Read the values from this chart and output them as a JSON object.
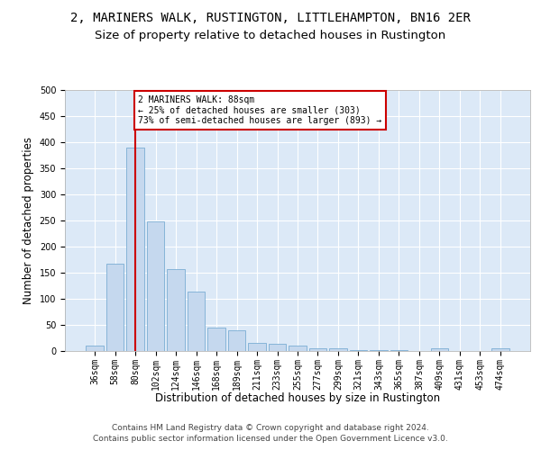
{
  "title": "2, MARINERS WALK, RUSTINGTON, LITTLEHAMPTON, BN16 2ER",
  "subtitle": "Size of property relative to detached houses in Rustington",
  "xlabel": "Distribution of detached houses by size in Rustington",
  "ylabel": "Number of detached properties",
  "categories": [
    "36sqm",
    "58sqm",
    "80sqm",
    "102sqm",
    "124sqm",
    "146sqm",
    "168sqm",
    "189sqm",
    "211sqm",
    "233sqm",
    "255sqm",
    "277sqm",
    "299sqm",
    "321sqm",
    "343sqm",
    "365sqm",
    "387sqm",
    "409sqm",
    "431sqm",
    "453sqm",
    "474sqm"
  ],
  "values": [
    11,
    167,
    390,
    248,
    157,
    113,
    44,
    40,
    16,
    13,
    10,
    6,
    5,
    2,
    2,
    1,
    0,
    5,
    0,
    0,
    5
  ],
  "bar_color": "#c5d8ee",
  "bar_edge_color": "#7aadd4",
  "property_line_x": 2,
  "property_line_color": "#cc0000",
  "annotation_text": "2 MARINERS WALK: 88sqm\n← 25% of detached houses are smaller (303)\n73% of semi-detached houses are larger (893) →",
  "annotation_box_color": "#cc0000",
  "plot_bg_color": "#dce9f7",
  "ylim": [
    0,
    500
  ],
  "yticks": [
    0,
    50,
    100,
    150,
    200,
    250,
    300,
    350,
    400,
    450,
    500
  ],
  "footer_line1": "Contains HM Land Registry data © Crown copyright and database right 2024.",
  "footer_line2": "Contains public sector information licensed under the Open Government Licence v3.0.",
  "title_fontsize": 10,
  "subtitle_fontsize": 9.5,
  "axis_label_fontsize": 8.5,
  "tick_fontsize": 7,
  "footer_fontsize": 6.5
}
